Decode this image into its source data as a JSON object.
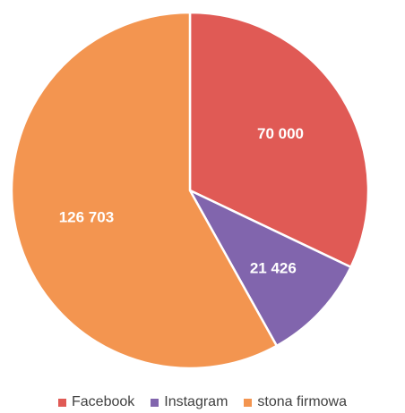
{
  "chart_data": {
    "type": "pie",
    "title": "",
    "legend_position": "bottom",
    "slices": [
      {
        "name": "Facebook",
        "value": 70000,
        "label": "70 000",
        "color": "#E05A55"
      },
      {
        "name": "Instagram",
        "value": 21426,
        "label": "21 426",
        "color": "#8165AD"
      },
      {
        "name": "stona firmowa",
        "value": 126703,
        "label": "126 703",
        "color": "#F39550"
      }
    ]
  }
}
